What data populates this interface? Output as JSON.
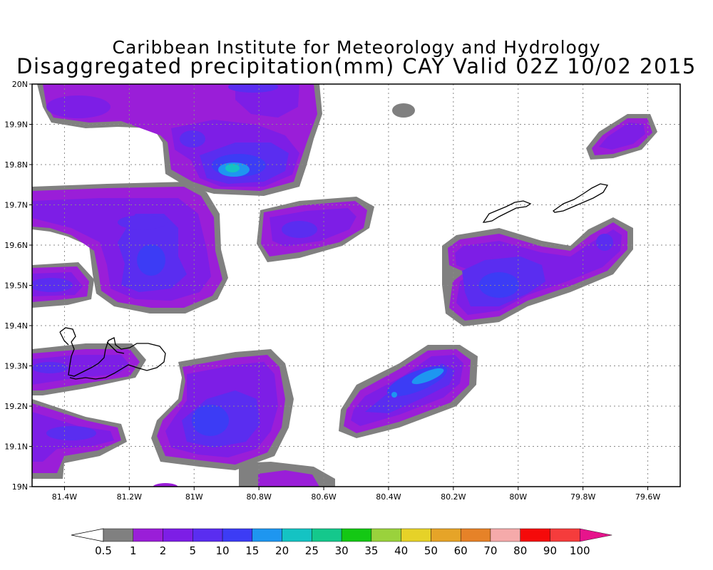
{
  "title_line1": "Caribbean Institute for Meteorology and Hydrology",
  "title_line2": "Disaggregated precipitation(mm) CAY Valid 02Z 10/02 2015",
  "axes": {
    "lon_min": -81.5,
    "lon_max": -79.5,
    "lat_min": 19.0,
    "lat_max": 20.0,
    "lon_ticks": [
      {
        "value": -81.4,
        "label": "81.4W"
      },
      {
        "value": -81.2,
        "label": "81.2W"
      },
      {
        "value": -81.0,
        "label": "81W"
      },
      {
        "value": -80.8,
        "label": "80.8W"
      },
      {
        "value": -80.6,
        "label": "80.6W"
      },
      {
        "value": -80.4,
        "label": "80.4W"
      },
      {
        "value": -80.2,
        "label": "80.2W"
      },
      {
        "value": -80.0,
        "label": "80W"
      },
      {
        "value": -79.8,
        "label": "79.8W"
      },
      {
        "value": -79.6,
        "label": "79.6W"
      }
    ],
    "lat_ticks": [
      {
        "value": 20.0,
        "label": "20N"
      },
      {
        "value": 19.9,
        "label": "19.9N"
      },
      {
        "value": 19.8,
        "label": "19.8N"
      },
      {
        "value": 19.7,
        "label": "19.7N"
      },
      {
        "value": 19.6,
        "label": "19.6N"
      },
      {
        "value": 19.5,
        "label": "19.5N"
      },
      {
        "value": 19.4,
        "label": "19.4N"
      },
      {
        "value": 19.3,
        "label": "19.3N"
      },
      {
        "value": 19.2,
        "label": "19.2N"
      },
      {
        "value": 19.1,
        "label": "19.1N"
      },
      {
        "value": 19.0,
        "label": "19N"
      }
    ],
    "grid": true
  },
  "colorbar": {
    "labels": [
      "0.5",
      "1",
      "2",
      "5",
      "10",
      "15",
      "20",
      "25",
      "30",
      "35",
      "40",
      "50",
      "60",
      "70",
      "80",
      "90",
      "100"
    ],
    "colors": [
      "#808080",
      "#9a1ed8",
      "#7d1ee6",
      "#5a2df0",
      "#3c3cf5",
      "#1e96f0",
      "#14c3c3",
      "#14c88c",
      "#14c814",
      "#9ad23c",
      "#e6d228",
      "#e6a428",
      "#e68228",
      "#f5aaaa",
      "#f50a0a",
      "#f53c3c",
      "#e6148c"
    ]
  },
  "precip_cells": [
    {
      "lon": -81.38,
      "lat": 19.95,
      "rx": 0.06,
      "ry": 0.03,
      "level": 2
    },
    {
      "lon": -80.95,
      "lat": 19.86,
      "rx": 0.07,
      "ry": 0.06,
      "level": 2
    },
    {
      "lon": -80.85,
      "lat": 19.8,
      "rx": 0.13,
      "ry": 0.06,
      "level": 4
    },
    {
      "lon": -80.88,
      "lat": 19.79,
      "rx": 0.04,
      "ry": 0.03,
      "level": 6
    },
    {
      "lon": -80.68,
      "lat": 19.63,
      "rx": 0.1,
      "ry": 0.06,
      "level": 3
    },
    {
      "lon": -81.1,
      "lat": 19.55,
      "rx": 0.07,
      "ry": 0.08,
      "level": 3
    },
    {
      "lon": -81.2,
      "lat": 19.67,
      "rx": 0.06,
      "ry": 0.03,
      "level": 3
    },
    {
      "lon": -81.45,
      "lat": 19.5,
      "rx": 0.05,
      "ry": 0.04,
      "level": 3
    },
    {
      "lon": -80.93,
      "lat": 19.14,
      "rx": 0.11,
      "ry": 0.07,
      "level": 3
    },
    {
      "lon": -81.38,
      "lat": 19.12,
      "rx": 0.08,
      "ry": 0.03,
      "level": 3
    },
    {
      "lon": -80.33,
      "lat": 19.24,
      "rx": 0.15,
      "ry": 0.05,
      "level": 3
    },
    {
      "lon": -80.28,
      "lat": 19.27,
      "rx": 0.05,
      "ry": 0.03,
      "level": 5
    },
    {
      "lon": -80.05,
      "lat": 19.52,
      "rx": 0.12,
      "ry": 0.07,
      "level": 3
    },
    {
      "lon": -79.75,
      "lat": 19.58,
      "rx": 0.06,
      "ry": 0.04,
      "level": 3
    }
  ]
}
